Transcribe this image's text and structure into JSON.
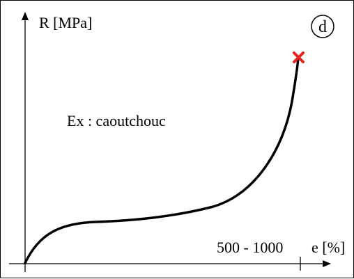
{
  "panel_label": "d",
  "y_axis_label": "R [MPa]",
  "x_axis_label": "e [%]",
  "x_tick_label": "500 - 1000",
  "material_note": "Ex : caoutchouc",
  "colors": {
    "curve": "#000000",
    "axes": "#000000",
    "rupture_marker": "#e8211c"
  },
  "markers": {
    "rupture": "x-cross-icon"
  }
}
